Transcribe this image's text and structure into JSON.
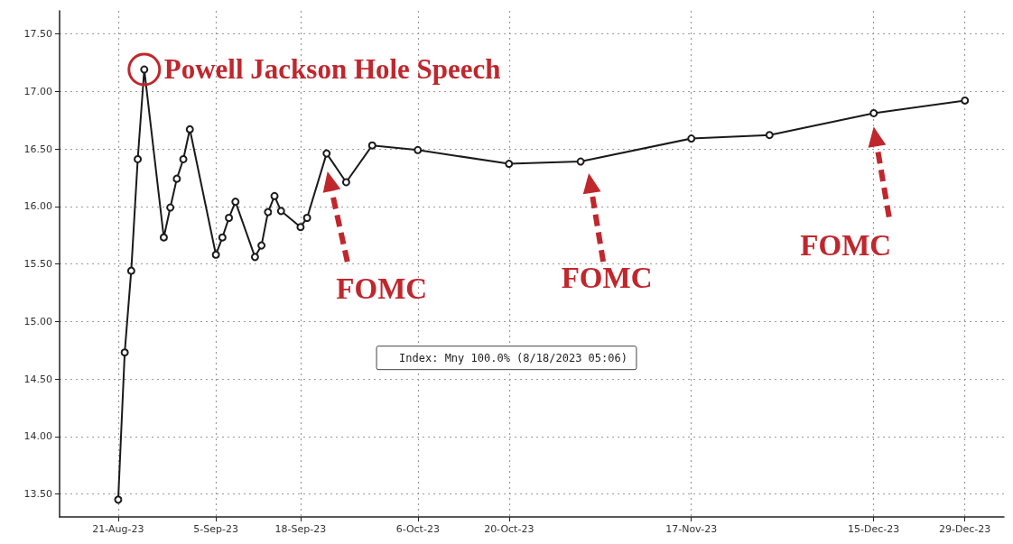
{
  "chart_data": {
    "type": "line",
    "x": [
      "2023-08-21",
      "2023-08-22",
      "2023-08-23",
      "2023-08-24",
      "2023-08-25",
      "2023-08-28",
      "2023-08-29",
      "2023-08-30",
      "2023-08-31",
      "2023-09-01",
      "2023-09-05",
      "2023-09-06",
      "2023-09-07",
      "2023-09-08",
      "2023-09-11",
      "2023-09-12",
      "2023-09-13",
      "2023-09-14",
      "2023-09-15",
      "2023-09-18",
      "2023-09-19",
      "2023-09-22",
      "2023-09-25",
      "2023-09-29",
      "2023-10-06",
      "2023-10-20",
      "2023-10-31",
      "2023-11-17",
      "2023-11-29",
      "2023-12-15",
      "2023-12-29"
    ],
    "series": [
      {
        "name": "Index: Mny 100.0% (8/18/2023 05:06)",
        "color": "#1a1a1a",
        "values": [
          13.45,
          14.73,
          15.44,
          16.41,
          17.19,
          15.73,
          15.99,
          16.24,
          16.41,
          16.67,
          15.58,
          15.73,
          15.9,
          16.04,
          15.56,
          15.66,
          15.95,
          16.09,
          15.96,
          15.82,
          15.9,
          16.46,
          16.21,
          16.53,
          16.49,
          16.37,
          16.39,
          16.59,
          16.62,
          16.81,
          16.92
        ]
      }
    ],
    "xlim": [
      "2023-08-12",
      "2024-01-04"
    ],
    "xticks": [
      {
        "value": "2023-08-21",
        "label": "21-Aug-23"
      },
      {
        "value": "2023-09-05",
        "label": "5-Sep-23"
      },
      {
        "value": "2023-09-18",
        "label": "18-Sep-23"
      },
      {
        "value": "2023-10-06",
        "label": "6-Oct-23"
      },
      {
        "value": "2023-10-20",
        "label": "20-Oct-23"
      },
      {
        "value": "2023-11-17",
        "label": "17-Nov-23"
      },
      {
        "value": "2023-12-15",
        "label": "15-Dec-23"
      },
      {
        "value": "2023-12-29",
        "label": "29-Dec-23"
      }
    ],
    "ylim": [
      13.3,
      17.7
    ],
    "yticks": [
      {
        "value": 13.5,
        "label": "13.50"
      },
      {
        "value": 14,
        "label": "14.00"
      },
      {
        "value": 14.5,
        "label": "14.50"
      },
      {
        "value": 15,
        "label": "15.00"
      },
      {
        "value": 15.5,
        "label": "15.50"
      },
      {
        "value": 16,
        "label": "16.00"
      },
      {
        "value": 16.5,
        "label": "16.50"
      },
      {
        "value": 17,
        "label": "17.00"
      },
      {
        "value": 17.5,
        "label": "17.50"
      }
    ],
    "annotations": [
      {
        "text": "Powell Jackson Hole Speech",
        "x": "2023-08-25",
        "y": 17.19
      },
      "FOMC",
      "FOMC",
      "FOMC"
    ],
    "grid": true,
    "legend": "bottom",
    "marker": "circle",
    "line_style": "solid"
  }
}
